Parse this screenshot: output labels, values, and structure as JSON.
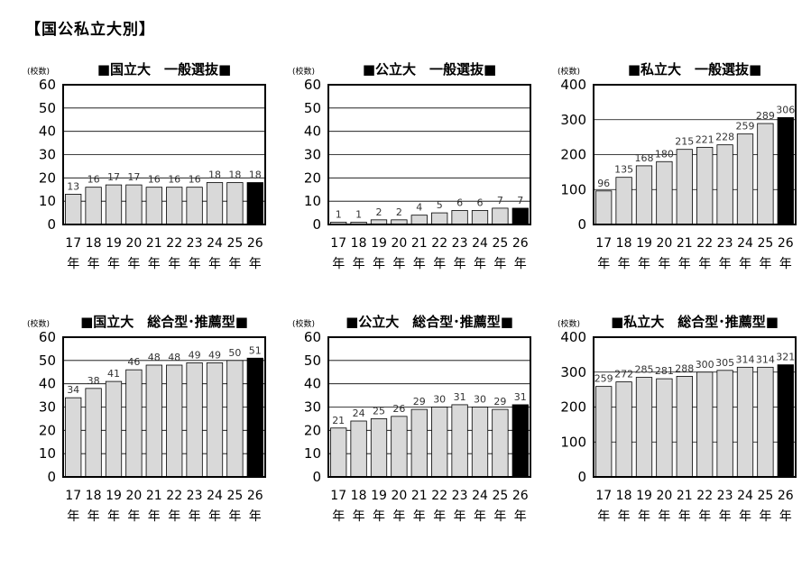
{
  "page_title": "【国公私立大別】",
  "chart_data": [
    {
      "type": "bar",
      "title": "■国立大　一般選抜■",
      "ylabel": "(校数)",
      "categories": [
        "17年",
        "18年",
        "19年",
        "20年",
        "21年",
        "22年",
        "23年",
        "24年",
        "25年",
        "26年"
      ],
      "values": [
        13,
        16,
        17,
        17,
        16,
        16,
        16,
        18,
        18,
        18
      ],
      "ylim": [
        0,
        60
      ],
      "yticks": [
        0,
        10,
        20,
        30,
        40,
        50,
        60
      ],
      "grid": true,
      "highlight_last": true,
      "colors": {
        "bar": "#d9d9d9",
        "highlight": "#000000",
        "border": "#000000"
      }
    },
    {
      "type": "bar",
      "title": "■公立大　一般選抜■",
      "ylabel": "(校数)",
      "categories": [
        "17年",
        "18年",
        "19年",
        "20年",
        "21年",
        "22年",
        "23年",
        "24年",
        "25年",
        "26年"
      ],
      "values": [
        1,
        1,
        2,
        2,
        4,
        5,
        6,
        6,
        7,
        7
      ],
      "ylim": [
        0,
        60
      ],
      "yticks": [
        0,
        10,
        20,
        30,
        40,
        50,
        60
      ],
      "grid": true,
      "highlight_last": true,
      "colors": {
        "bar": "#d9d9d9",
        "highlight": "#000000",
        "border": "#000000"
      }
    },
    {
      "type": "bar",
      "title": "■私立大　一般選抜■",
      "ylabel": "(校数)",
      "categories": [
        "17年",
        "18年",
        "19年",
        "20年",
        "21年",
        "22年",
        "23年",
        "24年",
        "25年",
        "26年"
      ],
      "values": [
        96,
        135,
        168,
        180,
        215,
        221,
        228,
        259,
        289,
        306
      ],
      "ylim": [
        0,
        400
      ],
      "yticks": [
        0,
        100,
        200,
        300,
        400
      ],
      "grid": true,
      "highlight_last": true,
      "colors": {
        "bar": "#d9d9d9",
        "highlight": "#000000",
        "border": "#000000"
      }
    },
    {
      "type": "bar",
      "title": "■国立大　総合型･推薦型■",
      "ylabel": "(校数)",
      "categories": [
        "17年",
        "18年",
        "19年",
        "20年",
        "21年",
        "22年",
        "23年",
        "24年",
        "25年",
        "26年"
      ],
      "values": [
        34,
        38,
        41,
        46,
        48,
        48,
        49,
        49,
        50,
        51
      ],
      "ylim": [
        0,
        60
      ],
      "yticks": [
        0,
        10,
        20,
        30,
        40,
        50,
        60
      ],
      "grid": true,
      "highlight_last": true,
      "colors": {
        "bar": "#d9d9d9",
        "highlight": "#000000",
        "border": "#000000"
      }
    },
    {
      "type": "bar",
      "title": "■公立大　総合型･推薦型■",
      "ylabel": "(校数)",
      "categories": [
        "17年",
        "18年",
        "19年",
        "20年",
        "21年",
        "22年",
        "23年",
        "24年",
        "25年",
        "26年"
      ],
      "values": [
        21,
        24,
        25,
        26,
        29,
        30,
        31,
        30,
        29,
        31
      ],
      "ylim": [
        0,
        60
      ],
      "yticks": [
        0,
        10,
        20,
        30,
        40,
        50,
        60
      ],
      "grid": true,
      "highlight_last": true,
      "colors": {
        "bar": "#d9d9d9",
        "highlight": "#000000",
        "border": "#000000"
      }
    },
    {
      "type": "bar",
      "title": "■私立大　総合型･推薦型■",
      "ylabel": "(校数)",
      "categories": [
        "17年",
        "18年",
        "19年",
        "20年",
        "21年",
        "22年",
        "23年",
        "24年",
        "25年",
        "26年"
      ],
      "values": [
        259,
        272,
        285,
        281,
        288,
        300,
        305,
        314,
        314,
        321
      ],
      "ylim": [
        0,
        400
      ],
      "yticks": [
        0,
        100,
        200,
        300,
        400
      ],
      "grid": true,
      "highlight_last": true,
      "colors": {
        "bar": "#d9d9d9",
        "highlight": "#000000",
        "border": "#000000"
      }
    }
  ]
}
